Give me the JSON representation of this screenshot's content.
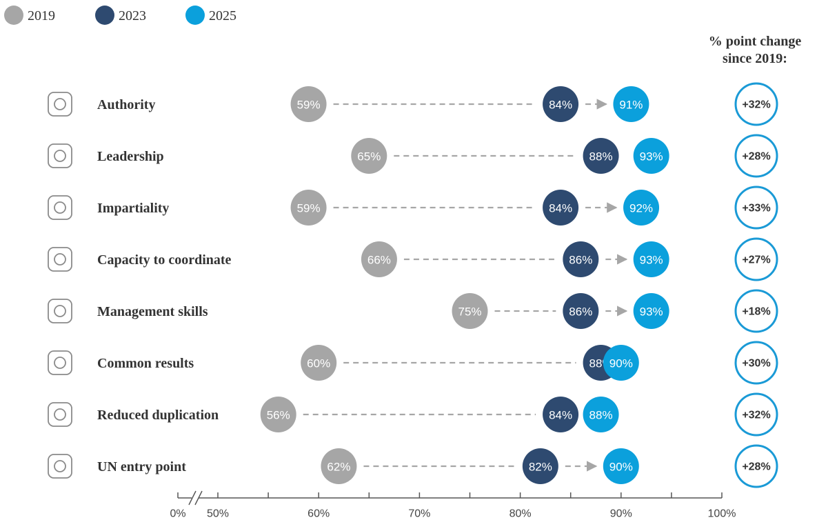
{
  "chart_data": {
    "type": "dot",
    "categories": [
      "Authority",
      "Leadership",
      "Impartiality",
      "Capacity to coordinate",
      "Management skills",
      "Common results",
      "Reduced duplication",
      "UN entry point"
    ],
    "series": [
      {
        "name": "2019",
        "color": "#a6a6a6",
        "values": [
          59,
          65,
          59,
          66,
          75,
          60,
          56,
          62
        ],
        "value_labels": [
          "59%",
          "65%",
          "59%",
          "66%",
          "75%",
          "60%",
          "56%",
          "62%"
        ]
      },
      {
        "name": "2023",
        "color": "#2e4a70",
        "values": [
          84,
          88,
          84,
          86,
          86,
          88,
          84,
          82
        ],
        "value_labels": [
          "84%",
          "88%",
          "84%",
          "86%",
          "86%",
          "88%",
          "84%",
          "82%"
        ]
      },
      {
        "name": "2025",
        "color": "#0ba0dc",
        "values": [
          91,
          93,
          92,
          93,
          93,
          90,
          88,
          90
        ],
        "value_labels": [
          "91%",
          "93%",
          "92%",
          "93%",
          "93%",
          "90%",
          "88%",
          "90%"
        ]
      }
    ],
    "change": {
      "title": "% point change since 2019:",
      "color": "#1a9ad6",
      "values": [
        32,
        28,
        33,
        27,
        18,
        30,
        32,
        28
      ],
      "value_labels": [
        "+32%",
        "+28%",
        "+33%",
        "+27%",
        "+18%",
        "+30%",
        "+32%",
        "+28%"
      ]
    },
    "xlim": [
      0,
      100
    ],
    "axis_break": [
      0,
      50
    ],
    "xticks": [
      {
        "value": 0,
        "label": "0%"
      },
      {
        "value": 50,
        "label": "50%"
      },
      {
        "value": 60,
        "label": "60%"
      },
      {
        "value": 70,
        "label": "70%"
      },
      {
        "value": 80,
        "label": "80%"
      },
      {
        "value": 90,
        "label": "90%"
      },
      {
        "value": 100,
        "label": "100%"
      }
    ],
    "minor_xticks": [
      55,
      65,
      75,
      85,
      95
    ]
  }
}
